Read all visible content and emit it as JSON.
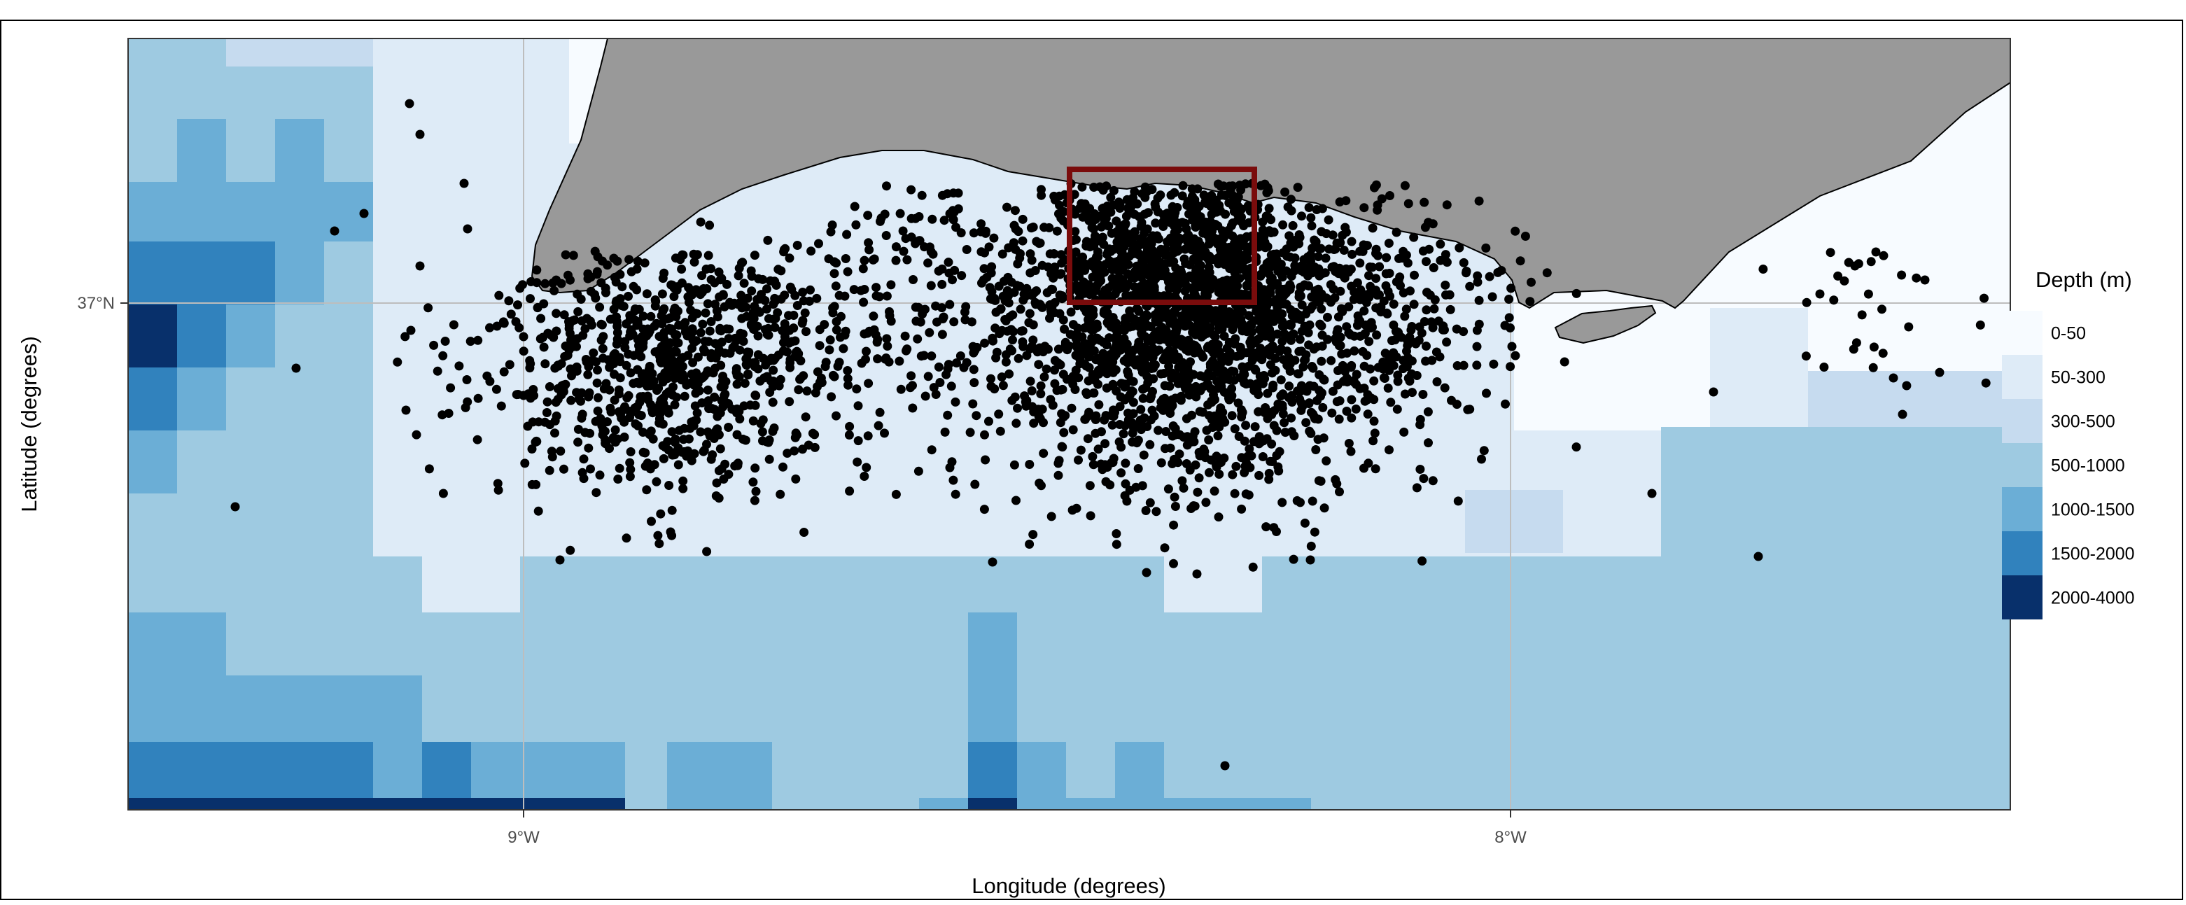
{
  "axes": {
    "xlabel": "Longitude (degrees)",
    "ylabel": "Latitude (degrees)",
    "x_ticks": [
      {
        "value": -9,
        "label": "9°W"
      },
      {
        "value": -8,
        "label": "8°W"
      }
    ],
    "y_ticks": [
      {
        "value": 37,
        "label": "37°N"
      }
    ],
    "xlim": [
      -9.4,
      -7.5
    ],
    "ylim": [
      36.5,
      37.27
    ]
  },
  "legend": {
    "title": "Depth (m)",
    "placement": "right",
    "items": [
      {
        "label": "0-50",
        "color": "#f7fbff"
      },
      {
        "label": "50-300",
        "color": "#deebf7"
      },
      {
        "label": "300-500",
        "color": "#c6dbef"
      },
      {
        "label": "500-1000",
        "color": "#9ecae1"
      },
      {
        "label": "1000-1500",
        "color": "#6baed6"
      },
      {
        "label": "1500-2000",
        "color": "#3182bd"
      },
      {
        "label": "2000-4000",
        "color": "#08306b"
      }
    ]
  },
  "colors": {
    "land": "#999999",
    "study_box": "#7a0c0c",
    "points": "#000000",
    "grid": "#bdbdbd"
  }
}
